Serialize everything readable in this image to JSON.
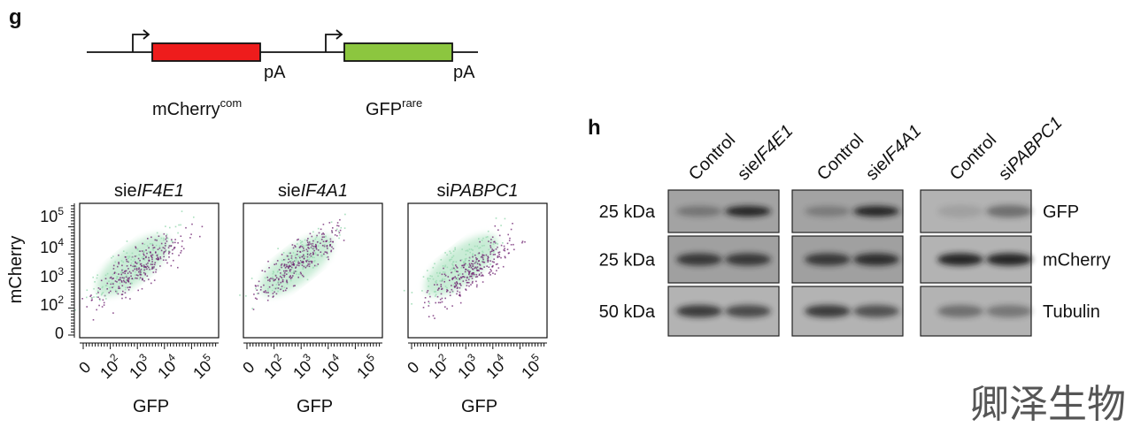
{
  "panel_g": {
    "label": "g",
    "construct": [
      {
        "name": "mCherry",
        "sup": "com",
        "polyA": "pA"
      },
      {
        "name": "GFP",
        "sup": "rare",
        "polyA": "pA"
      }
    ],
    "plots": [
      {
        "title_prefix": "sie",
        "title_italic": "IF4E1"
      },
      {
        "title_prefix": "sie",
        "title_italic": "IF4A1"
      },
      {
        "title_prefix": "si",
        "title_italic": "PABPC1"
      }
    ],
    "y_label": "mCherry",
    "x_label": "GFP",
    "y_ticks": [
      {
        "base": "0"
      },
      {
        "base": "10",
        "exp": "2"
      },
      {
        "base": "10",
        "exp": "3"
      },
      {
        "base": "10",
        "exp": "4"
      },
      {
        "base": "10",
        "exp": "5"
      }
    ],
    "x_ticks": [
      {
        "base": "0"
      },
      {
        "base": "10",
        "exp": "2"
      },
      {
        "base": "10",
        "exp": "3"
      },
      {
        "base": "10",
        "exp": "4"
      },
      {
        "base": "10",
        "exp": "5"
      }
    ]
  },
  "panel_h": {
    "label": "h",
    "groups": [
      [
        {
          "prefix": "Control"
        },
        {
          "prefix": "sie",
          "italic": "IF4E1"
        }
      ],
      [
        {
          "prefix": "Control"
        },
        {
          "prefix": "sie",
          "italic": "IF4A1"
        }
      ],
      [
        {
          "prefix": "Control"
        },
        {
          "prefix": "si",
          "italic": "PABPC1"
        }
      ]
    ],
    "rows": [
      {
        "size": "25 kDa",
        "protein": "GFP"
      },
      {
        "size": "25 kDa",
        "protein": "mCherry"
      },
      {
        "size": "50 kDa",
        "protein": "Tubulin"
      }
    ]
  },
  "watermark": "卿泽生物"
}
